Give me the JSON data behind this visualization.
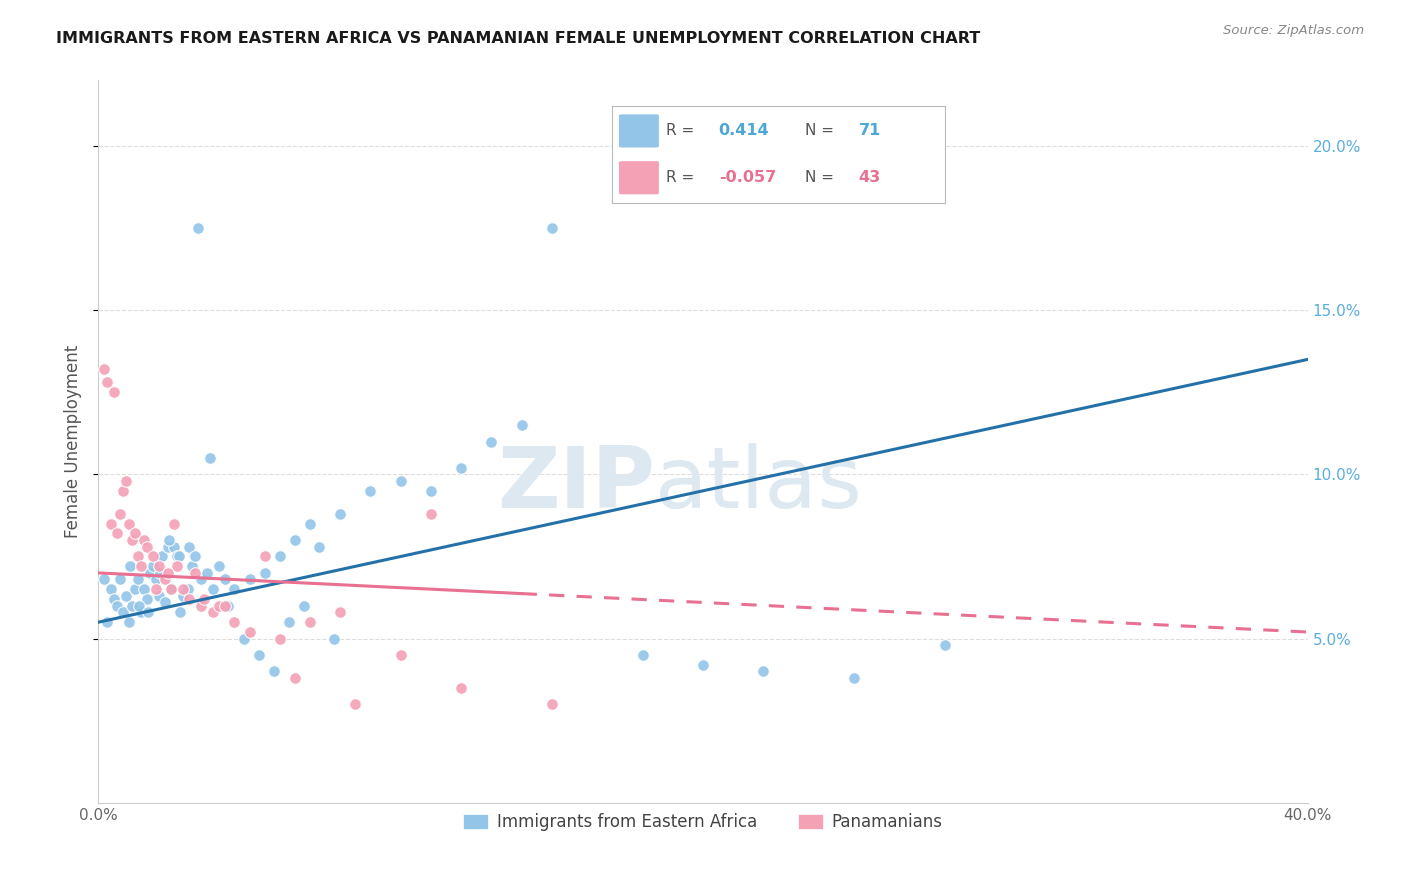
{
  "title": "IMMIGRANTS FROM EASTERN AFRICA VS PANAMANIAN FEMALE UNEMPLOYMENT CORRELATION CHART",
  "source": "Source: ZipAtlas.com",
  "ylabel": "Female Unemployment",
  "watermark": "ZIPatlas",
  "legend": [
    {
      "label": "Immigrants from Eastern Africa",
      "color": "#92c5e8",
      "R": 0.414,
      "N": 71
    },
    {
      "label": "Panamanians",
      "color": "#f4a0b5",
      "R": -0.057,
      "N": 43
    }
  ],
  "blue_scatter_x": [
    0.2,
    0.4,
    0.5,
    0.6,
    0.8,
    0.9,
    1.0,
    1.1,
    1.2,
    1.3,
    1.4,
    1.5,
    1.6,
    1.7,
    1.8,
    1.9,
    2.0,
    2.1,
    2.2,
    2.3,
    2.4,
    2.5,
    2.6,
    2.7,
    2.8,
    3.0,
    3.1,
    3.2,
    3.4,
    3.6,
    3.8,
    4.0,
    4.2,
    4.5,
    5.0,
    5.5,
    6.0,
    6.5,
    7.0,
    8.0,
    9.0,
    10.0,
    11.0,
    12.0,
    13.0,
    14.0,
    15.0,
    18.0,
    20.0,
    22.0,
    25.0,
    28.0,
    0.3,
    0.7,
    1.05,
    1.35,
    1.65,
    2.05,
    2.35,
    2.65,
    2.95,
    3.3,
    3.7,
    4.3,
    4.8,
    5.3,
    5.8,
    6.3,
    6.8,
    7.3,
    7.8
  ],
  "blue_scatter_y": [
    6.8,
    6.5,
    6.2,
    6.0,
    5.8,
    6.3,
    5.5,
    6.0,
    6.5,
    6.8,
    5.8,
    6.5,
    6.2,
    7.0,
    7.2,
    6.8,
    6.3,
    7.5,
    6.1,
    7.8,
    6.5,
    7.8,
    7.5,
    5.8,
    6.3,
    7.8,
    7.2,
    7.5,
    6.8,
    7.0,
    6.5,
    7.2,
    6.8,
    6.5,
    6.8,
    7.0,
    7.5,
    8.0,
    8.5,
    8.8,
    9.5,
    9.8,
    9.5,
    10.2,
    11.0,
    11.5,
    17.5,
    4.5,
    4.2,
    4.0,
    3.8,
    4.8,
    5.5,
    6.8,
    7.2,
    6.0,
    5.8,
    7.0,
    8.0,
    7.5,
    6.5,
    17.5,
    10.5,
    6.0,
    5.0,
    4.5,
    4.0,
    5.5,
    6.0,
    7.8,
    5.0
  ],
  "pink_scatter_x": [
    0.2,
    0.3,
    0.4,
    0.5,
    0.6,
    0.7,
    0.8,
    0.9,
    1.0,
    1.1,
    1.2,
    1.3,
    1.4,
    1.5,
    1.6,
    1.8,
    2.0,
    2.2,
    2.4,
    2.6,
    2.8,
    3.0,
    3.2,
    3.4,
    3.8,
    4.0,
    4.5,
    5.0,
    6.0,
    7.0,
    8.0,
    10.0,
    12.0,
    15.0,
    2.5,
    3.5,
    4.2,
    5.5,
    6.5,
    8.5,
    11.0,
    1.9,
    2.3
  ],
  "pink_scatter_y": [
    13.2,
    12.8,
    8.5,
    12.5,
    8.2,
    8.8,
    9.5,
    9.8,
    8.5,
    8.0,
    8.2,
    7.5,
    7.2,
    8.0,
    7.8,
    7.5,
    7.2,
    6.8,
    6.5,
    7.2,
    6.5,
    6.2,
    7.0,
    6.0,
    5.8,
    6.0,
    5.5,
    5.2,
    5.0,
    5.5,
    5.8,
    4.5,
    3.5,
    3.0,
    8.5,
    6.2,
    6.0,
    7.5,
    3.8,
    3.0,
    8.8,
    6.5,
    7.0
  ],
  "xlim": [
    0,
    40
  ],
  "ylim": [
    0,
    22
  ],
  "yticks_right": [
    5.0,
    10.0,
    15.0,
    20.0
  ],
  "ytick_labels_right": [
    "5.0%",
    "10.0%",
    "15.0%",
    "20.0%"
  ],
  "blue_line_x0": 0,
  "blue_line_x1": 40,
  "blue_line_y0": 5.5,
  "blue_line_y1": 13.5,
  "pink_line_x0": 0,
  "pink_line_x1": 40,
  "pink_line_y0": 7.0,
  "pink_line_y1": 5.2,
  "pink_solid_end": 14,
  "background_color": "#ffffff",
  "grid_color": "#dddddd",
  "blue_color": "#92c5e8",
  "pink_color": "#f4a0b5",
  "blue_line_color": "#2471a8",
  "pink_line_color": "#e87090"
}
